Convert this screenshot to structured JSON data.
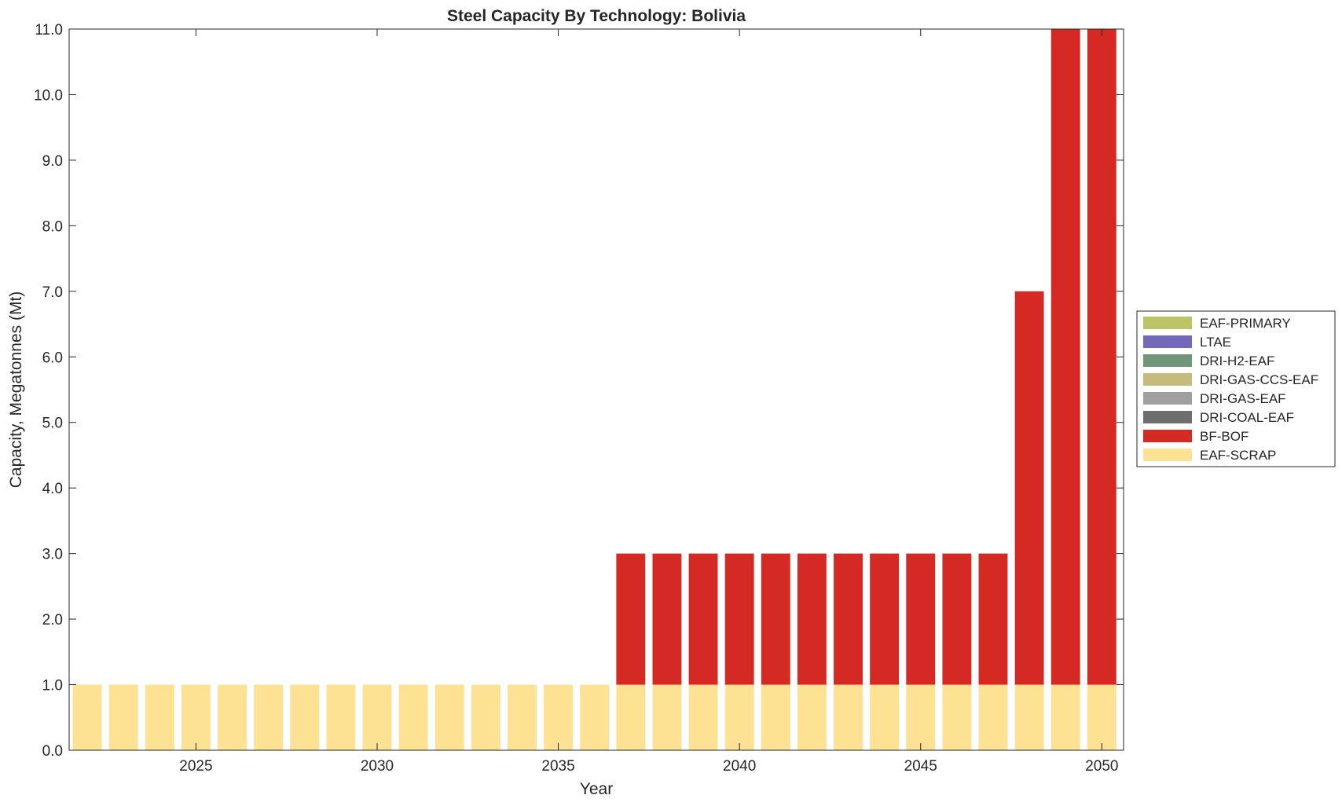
{
  "chart_data": {
    "type": "bar",
    "stacked": true,
    "title": "Steel Capacity By Technology: Bolivia",
    "xlabel": "Year",
    "ylabel": "Capacity, Megatonnes (Mt)",
    "x": [
      2022,
      2023,
      2024,
      2025,
      2026,
      2027,
      2028,
      2029,
      2030,
      2031,
      2032,
      2033,
      2034,
      2035,
      2036,
      2037,
      2038,
      2039,
      2040,
      2041,
      2042,
      2043,
      2044,
      2045,
      2046,
      2047,
      2048,
      2049,
      2050
    ],
    "xlim": [
      2021.5,
      2050.6
    ],
    "ylim": [
      0,
      11
    ],
    "xticks": [
      2025,
      2030,
      2035,
      2040,
      2045,
      2050
    ],
    "xtick_labels": [
      "2025",
      "2030",
      "2035",
      "2040",
      "2045",
      "2050"
    ],
    "yticks": [
      0,
      1,
      2,
      3,
      4,
      5,
      6,
      7,
      8,
      9,
      10,
      11
    ],
    "ytick_labels": [
      "0.0",
      "1.0",
      "2.0",
      "3.0",
      "4.0",
      "5.0",
      "6.0",
      "7.0",
      "8.0",
      "9.0",
      "10.0",
      "11.0"
    ],
    "grid": false,
    "legend_position": "right",
    "series": [
      {
        "name": "EAF-SCRAP",
        "color": "#fde293",
        "values": [
          1,
          1,
          1,
          1,
          1,
          1,
          1,
          1,
          1,
          1,
          1,
          1,
          1,
          1,
          1,
          1,
          1,
          1,
          1,
          1,
          1,
          1,
          1,
          1,
          1,
          1,
          1,
          1,
          1
        ]
      },
      {
        "name": "BF-BOF",
        "color": "#d42a23",
        "values": [
          0,
          0,
          0,
          0,
          0,
          0,
          0,
          0,
          0,
          0,
          0,
          0,
          0,
          0,
          0,
          2,
          2,
          2,
          2,
          2,
          2,
          2,
          2,
          2,
          2,
          2,
          6,
          10,
          10
        ]
      },
      {
        "name": "DRI-COAL-EAF",
        "color": "#6e6e6e",
        "values": [
          0,
          0,
          0,
          0,
          0,
          0,
          0,
          0,
          0,
          0,
          0,
          0,
          0,
          0,
          0,
          0,
          0,
          0,
          0,
          0,
          0,
          0,
          0,
          0,
          0,
          0,
          0,
          0,
          0
        ]
      },
      {
        "name": "DRI-GAS-EAF",
        "color": "#a0a0a0",
        "values": [
          0,
          0,
          0,
          0,
          0,
          0,
          0,
          0,
          0,
          0,
          0,
          0,
          0,
          0,
          0,
          0,
          0,
          0,
          0,
          0,
          0,
          0,
          0,
          0,
          0,
          0,
          0,
          0,
          0
        ]
      },
      {
        "name": "DRI-GAS-CCS-EAF",
        "color": "#c5bb7d",
        "values": [
          0,
          0,
          0,
          0,
          0,
          0,
          0,
          0,
          0,
          0,
          0,
          0,
          0,
          0,
          0,
          0,
          0,
          0,
          0,
          0,
          0,
          0,
          0,
          0,
          0,
          0,
          0,
          0,
          0
        ]
      },
      {
        "name": "DRI-H2-EAF",
        "color": "#70967a",
        "values": [
          0,
          0,
          0,
          0,
          0,
          0,
          0,
          0,
          0,
          0,
          0,
          0,
          0,
          0,
          0,
          0,
          0,
          0,
          0,
          0,
          0,
          0,
          0,
          0,
          0,
          0,
          0,
          0,
          0
        ]
      },
      {
        "name": "LTAE",
        "color": "#7369bb",
        "values": [
          0,
          0,
          0,
          0,
          0,
          0,
          0,
          0,
          0,
          0,
          0,
          0,
          0,
          0,
          0,
          0,
          0,
          0,
          0,
          0,
          0,
          0,
          0,
          0,
          0,
          0,
          0,
          0,
          0
        ]
      },
      {
        "name": "EAF-PRIMARY",
        "color": "#bcc466",
        "values": [
          0,
          0,
          0,
          0,
          0,
          0,
          0,
          0,
          0,
          0,
          0,
          0,
          0,
          0,
          0,
          0,
          0,
          0,
          0,
          0,
          0,
          0,
          0,
          0,
          0,
          0,
          0,
          0,
          0
        ]
      }
    ],
    "legend_order": [
      "EAF-PRIMARY",
      "LTAE",
      "DRI-H2-EAF",
      "DRI-GAS-CCS-EAF",
      "DRI-GAS-EAF",
      "DRI-COAL-EAF",
      "BF-BOF",
      "EAF-SCRAP"
    ]
  }
}
